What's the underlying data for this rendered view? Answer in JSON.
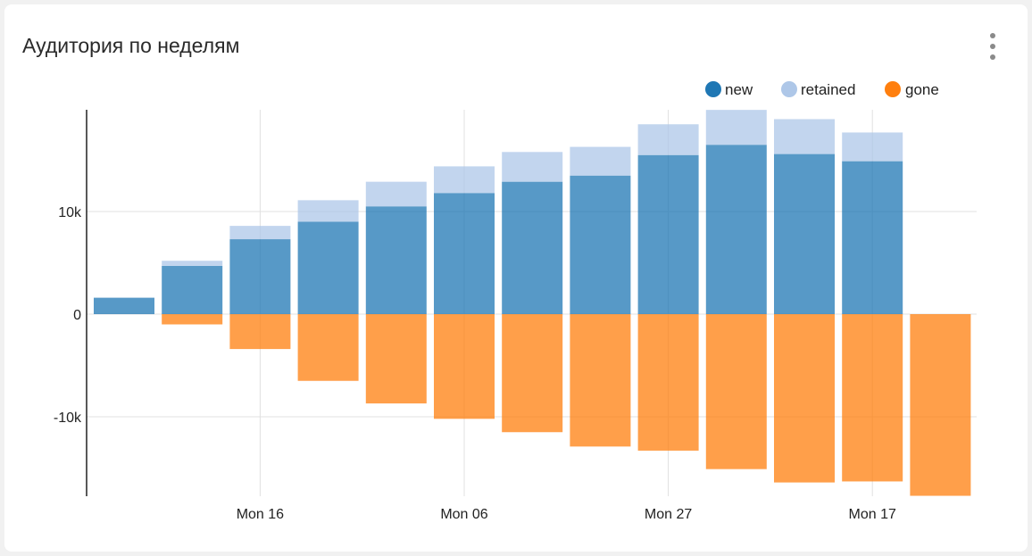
{
  "card": {
    "title": "Аудитория по неделям",
    "menu_icon": "more-vertical-icon"
  },
  "chart_data": {
    "type": "bar",
    "stacked": true,
    "x": [
      "",
      "",
      "Mon 16",
      "",
      "",
      "Mon 06",
      "",
      "",
      "Mon 27",
      "",
      "",
      "Mon 17",
      ""
    ],
    "series": [
      {
        "name": "new",
        "color": "#1f77b4",
        "values": [
          1600,
          4700,
          7300,
          9000,
          10500,
          11800,
          12900,
          13500,
          15500,
          16500,
          15600,
          14900,
          0
        ]
      },
      {
        "name": "retained",
        "color": "#aec7e8",
        "values": [
          0,
          500,
          1300,
          2100,
          2400,
          2600,
          2900,
          2800,
          3000,
          3400,
          3400,
          2800,
          0
        ]
      },
      {
        "name": "gone",
        "color": "#ff7f0e",
        "values": [
          0,
          -1000,
          -3400,
          -6500,
          -8700,
          -10200,
          -11500,
          -12900,
          -13300,
          -15100,
          -16400,
          -16300,
          -17700
        ]
      }
    ],
    "yticks": [
      {
        "value": 10000,
        "label": "10k"
      },
      {
        "value": 0,
        "label": "0"
      },
      {
        "value": -10000,
        "label": "-10k"
      }
    ],
    "xticks": [
      "Mon 16",
      "Mon 06",
      "Mon 27",
      "Mon 17"
    ],
    "ylim": [
      -17800,
      20000
    ],
    "grid": true,
    "legend": "top-right"
  }
}
